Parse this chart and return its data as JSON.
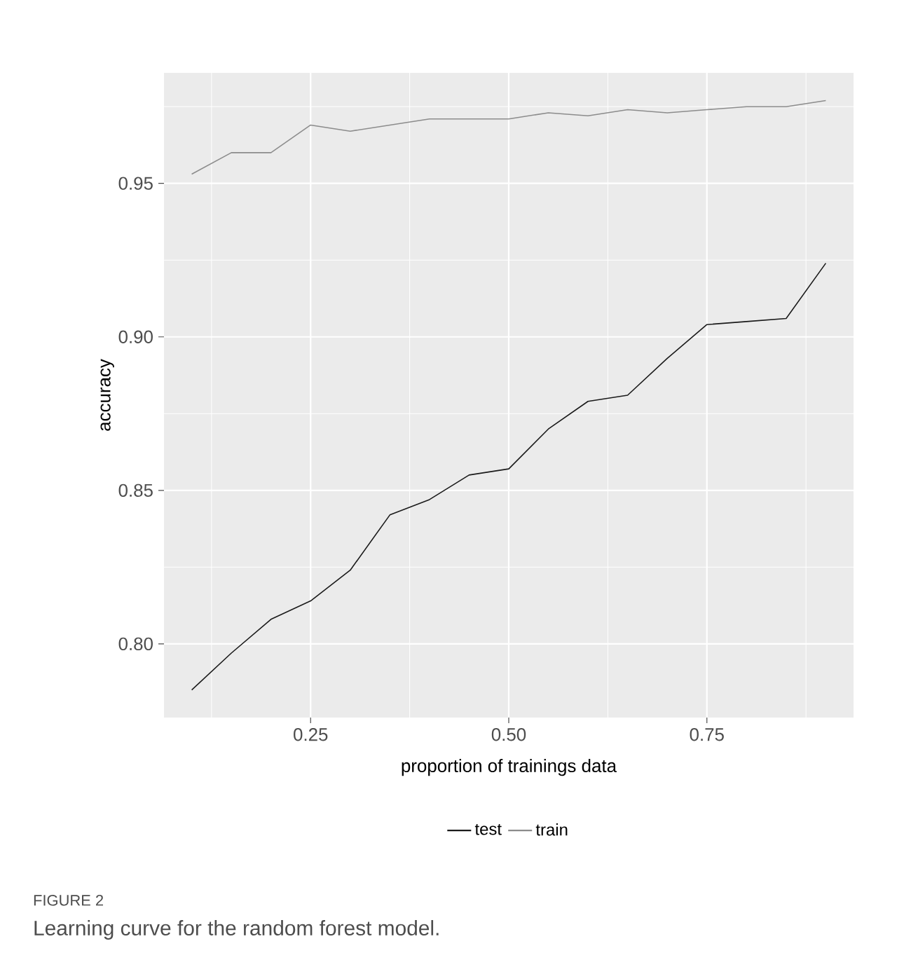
{
  "chart_data": {
    "type": "line",
    "title": "FIGURE 2",
    "subtitle": "Learning curve for the random forest model.",
    "xlabel": "proportion of trainings data",
    "ylabel": "accuracy",
    "x": [
      0.1,
      0.15,
      0.2,
      0.25,
      0.3,
      0.35,
      0.4,
      0.45,
      0.5,
      0.55,
      0.6,
      0.65,
      0.7,
      0.75,
      0.8,
      0.85,
      0.9
    ],
    "series": [
      {
        "name": "test",
        "color": "#1a1a1a",
        "values": [
          0.785,
          0.797,
          0.808,
          0.814,
          0.824,
          0.842,
          0.847,
          0.855,
          0.857,
          0.87,
          0.879,
          0.881,
          0.893,
          0.904,
          0.905,
          0.906,
          0.924
        ]
      },
      {
        "name": "train",
        "color": "#8c8c8c",
        "values": [
          0.953,
          0.96,
          0.96,
          0.969,
          0.967,
          0.969,
          0.971,
          0.971,
          0.971,
          0.973,
          0.972,
          0.974,
          0.973,
          0.974,
          0.975,
          0.975,
          0.977
        ]
      }
    ],
    "xlim": [
      0.065,
      0.935
    ],
    "ylim": [
      0.776,
      0.986
    ],
    "xticks": [
      {
        "value": 0.25,
        "label": "0.25"
      },
      {
        "value": 0.5,
        "label": "0.50"
      },
      {
        "value": 0.75,
        "label": "0.75"
      }
    ],
    "yticks": [
      {
        "value": 0.8,
        "label": "0.80"
      },
      {
        "value": 0.85,
        "label": "0.85"
      },
      {
        "value": 0.9,
        "label": "0.90"
      },
      {
        "value": 0.95,
        "label": "0.95"
      }
    ],
    "grid": true,
    "legend": "bottom",
    "line_style": "solid"
  }
}
